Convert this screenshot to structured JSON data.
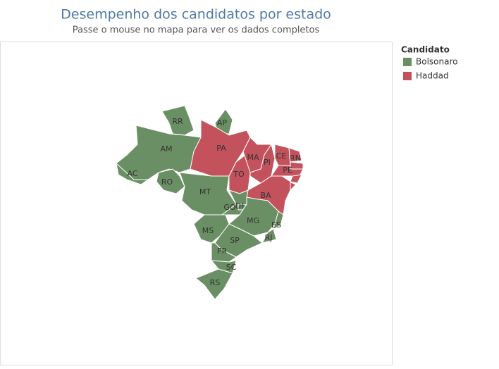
{
  "header": {
    "title": "Desempenho dos candidatos por estado",
    "subtitle": "Passe o mouse no mapa para ver os dados completos"
  },
  "legend": {
    "title": "Candidato",
    "items": [
      {
        "name": "Bolsonaro",
        "color": "#6b8f64"
      },
      {
        "name": "Haddad",
        "color": "#c3525c"
      }
    ]
  },
  "states": [
    {
      "label": "RR",
      "candidate": "Bolsonaro"
    },
    {
      "label": "AP",
      "candidate": "Bolsonaro"
    },
    {
      "label": "AM",
      "candidate": "Bolsonaro"
    },
    {
      "label": "PA",
      "candidate": "Haddad"
    },
    {
      "label": "AC",
      "candidate": "Bolsonaro"
    },
    {
      "label": "RO",
      "candidate": "Bolsonaro"
    },
    {
      "label": "MT",
      "candidate": "Bolsonaro"
    },
    {
      "label": "TO",
      "candidate": "Haddad"
    },
    {
      "label": "MA",
      "candidate": "Haddad"
    },
    {
      "label": "PI",
      "candidate": "Haddad"
    },
    {
      "label": "CE",
      "candidate": "Haddad"
    },
    {
      "label": "RN",
      "candidate": "Haddad"
    },
    {
      "label": null,
      "candidate": "Haddad"
    },
    {
      "label": "PE",
      "candidate": "Haddad"
    },
    {
      "label": null,
      "candidate": "Haddad"
    },
    {
      "label": null,
      "candidate": "Haddad"
    },
    {
      "label": "BA",
      "candidate": "Haddad"
    },
    {
      "label": "GO",
      "candidate": "Bolsonaro"
    },
    {
      "label": "DF",
      "candidate": "Bolsonaro"
    },
    {
      "label": "MG",
      "candidate": "Bolsonaro"
    },
    {
      "label": "ES",
      "candidate": "Bolsonaro"
    },
    {
      "label": "RJ",
      "candidate": "Bolsonaro"
    },
    {
      "label": "MS",
      "candidate": "Bolsonaro"
    },
    {
      "label": "SP",
      "candidate": "Bolsonaro"
    },
    {
      "label": "PR",
      "candidate": "Bolsonaro"
    },
    {
      "label": "SC",
      "candidate": "Bolsonaro"
    },
    {
      "label": "RS",
      "candidate": "Bolsonaro"
    }
  ]
}
